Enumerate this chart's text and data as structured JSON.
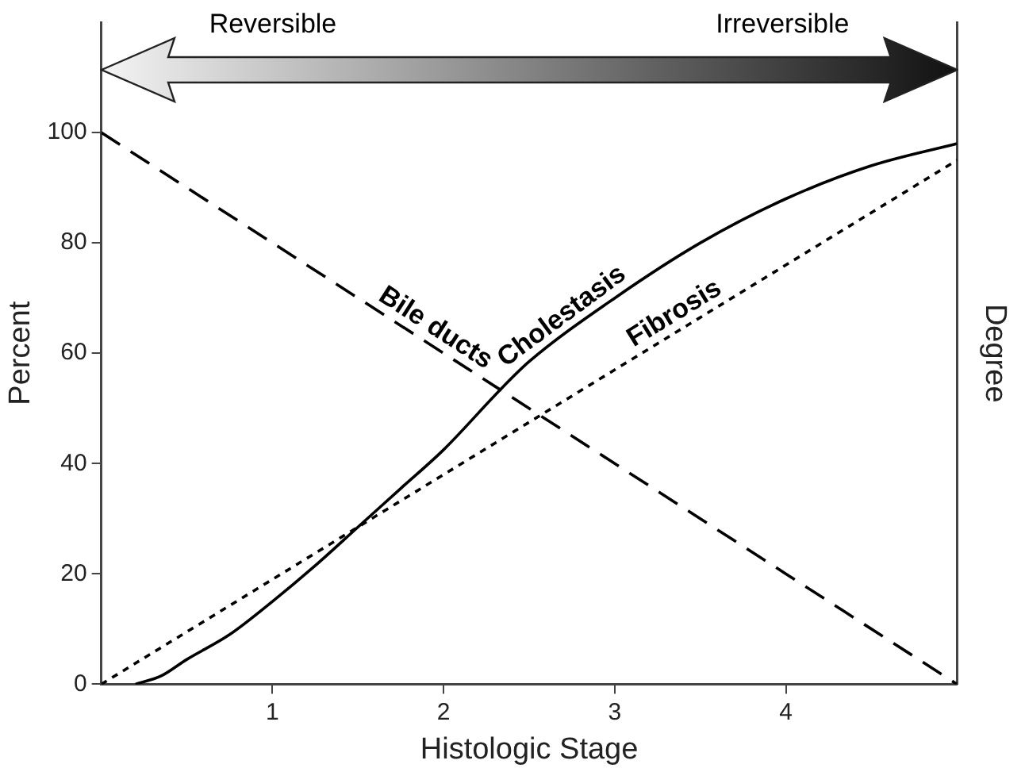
{
  "chart_data": {
    "type": "line",
    "xlabel": "Histologic Stage",
    "ylabel": "Percent",
    "y2label": "Degree",
    "xlim": [
      0,
      5
    ],
    "xticks": [
      1,
      2,
      3,
      4
    ],
    "ylim": [
      0,
      120
    ],
    "yticks": [
      0,
      20,
      40,
      60,
      80,
      100
    ],
    "grid": false,
    "legend": false,
    "marker": "none",
    "annotations": [
      "Reversible",
      "Irreversible"
    ],
    "series": [
      {
        "name": "Bile ducts",
        "color": "#000000",
        "line_style": "dashed",
        "x": [
          0,
          5
        ],
        "values": [
          100,
          0
        ]
      },
      {
        "name": "Cholestasis",
        "color": "#000000",
        "line_style": "solid",
        "x": [
          0.2,
          0.35,
          0.5,
          0.75,
          1,
          1.25,
          1.5,
          1.75,
          2,
          2.35,
          2.5,
          3,
          3.5,
          4,
          4.5,
          5
        ],
        "values": [
          0,
          1.5,
          4.5,
          9,
          15,
          21.5,
          28.5,
          35.5,
          42.5,
          54,
          58.5,
          70,
          80,
          88,
          94,
          98
        ]
      },
      {
        "name": "Fibrosis",
        "color": "#000000",
        "line_style": "dotted",
        "x": [
          0,
          5
        ],
        "values": [
          0,
          95
        ]
      }
    ]
  }
}
